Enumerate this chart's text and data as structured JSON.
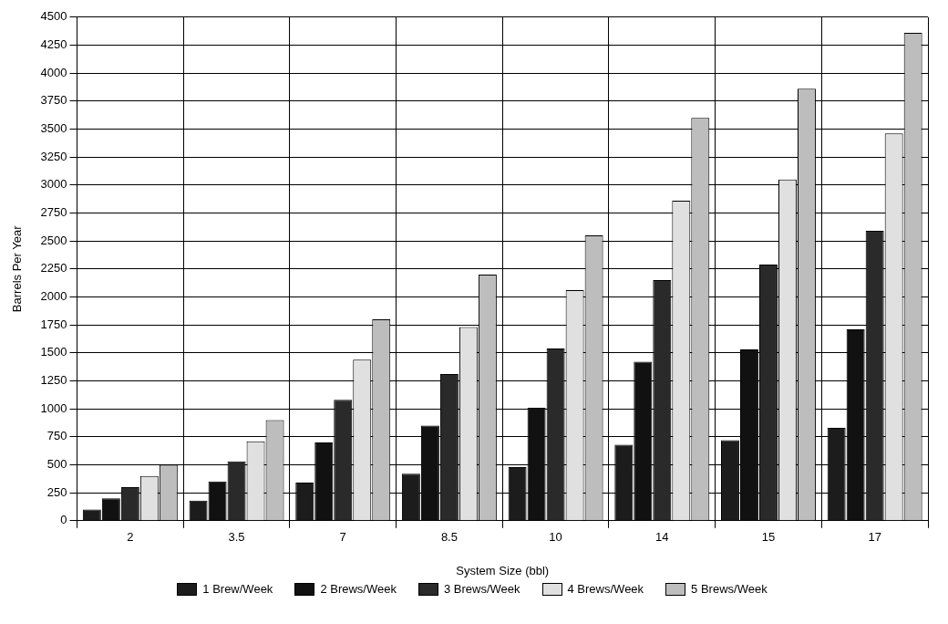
{
  "chart_data": {
    "type": "bar",
    "xlabel": "System Size (bbl)",
    "ylabel": "Barrels Per Year",
    "categories": [
      "2",
      "3.5",
      "7",
      "8.5",
      "10",
      "14",
      "15",
      "17"
    ],
    "series": [
      {
        "name": "1 Brew/Week",
        "color": "#1c1c1c",
        "values": [
          100,
          180,
          340,
          420,
          480,
          680,
          720,
          830
        ]
      },
      {
        "name": "2 Brews/Week",
        "color": "#111111",
        "values": [
          200,
          350,
          700,
          850,
          1010,
          1420,
          1530,
          1710
        ]
      },
      {
        "name": "3 Brews/Week",
        "color": "#2a2a2a",
        "values": [
          300,
          530,
          1080,
          1310,
          1540,
          2150,
          2290,
          2590
        ]
      },
      {
        "name": "4 Brews/Week",
        "color": "#e0e0e0",
        "values": [
          400,
          710,
          1440,
          1730,
          2060,
          2860,
          3050,
          3460
        ]
      },
      {
        "name": "5 Brews/Week",
        "color": "#bdbdbd",
        "values": [
          500,
          900,
          1800,
          2200,
          2550,
          3600,
          3860,
          4360
        ]
      }
    ],
    "ylim": [
      0,
      4500
    ],
    "yticks": [
      0,
      250,
      500,
      750,
      1000,
      1250,
      1500,
      1750,
      2000,
      2250,
      2500,
      2750,
      3000,
      3250,
      3500,
      3750,
      4000,
      4250,
      4500
    ],
    "grid": true,
    "legend": "bottom"
  }
}
